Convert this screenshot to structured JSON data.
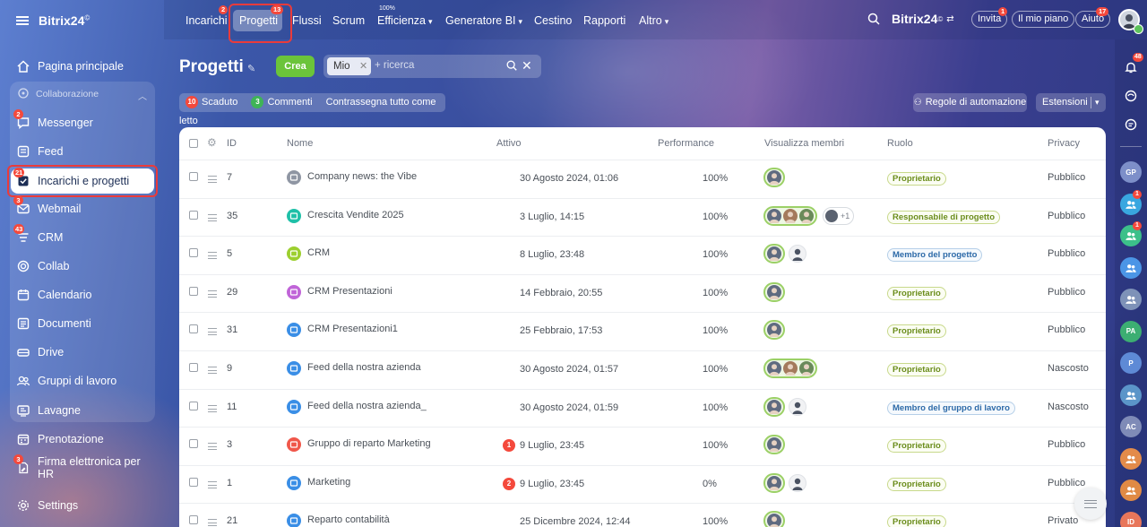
{
  "app": {
    "brand": "Bitrix24",
    "brand_mark": "©"
  },
  "sidebar": {
    "items": [
      {
        "label": "Pagina principale",
        "icon": "home-icon"
      },
      {
        "label": "Messenger",
        "icon": "chat-icon",
        "badge": "2"
      },
      {
        "label": "Feed",
        "icon": "feed-icon"
      },
      {
        "label": "Incarichi e progetti",
        "icon": "tasks-icon",
        "badge": "21"
      },
      {
        "label": "Webmail",
        "icon": "mail-icon",
        "badge": "3"
      },
      {
        "label": "CRM",
        "icon": "crm-icon",
        "badge": "43"
      },
      {
        "label": "Collab",
        "icon": "collab-icon"
      },
      {
        "label": "Calendario",
        "icon": "calendar-icon"
      },
      {
        "label": "Documenti",
        "icon": "documents-icon"
      },
      {
        "label": "Drive",
        "icon": "drive-icon"
      },
      {
        "label": "Gruppi di lavoro",
        "icon": "groups-icon"
      },
      {
        "label": "Lavagne",
        "icon": "boards-icon"
      },
      {
        "label": "Prenotazione",
        "icon": "booking-icon"
      },
      {
        "label": "Firma elettronica per HR",
        "icon": "sign-icon",
        "badge": "3"
      },
      {
        "label": "Settings",
        "icon": "settings-icon"
      }
    ],
    "group_label": "Collaborazione"
  },
  "topnav": {
    "items": [
      {
        "label": "Incarichi",
        "badge": "2"
      },
      {
        "label": "Progetti",
        "badge": "13"
      },
      {
        "label": "Flussi"
      },
      {
        "label": "Scrum"
      },
      {
        "label": "Efficienza",
        "small": "100%"
      },
      {
        "label": "Generatore BI"
      },
      {
        "label": "Cestino"
      },
      {
        "label": "Rapporti"
      },
      {
        "label": "Altro"
      }
    ],
    "invite_label": "Invita",
    "invite_badge": "1",
    "plan_label": "Il mio piano",
    "help_label": "Aiuto",
    "help_badge": "17"
  },
  "page": {
    "title": "Progetti",
    "create_label": "Crea",
    "filter_chip": "Mio",
    "search_placeholder": "+ ricerca",
    "counters": {
      "overdue_count": "10",
      "overdue_label": "Scaduto",
      "comments_count": "3",
      "comments_label": "Commenti",
      "mark_read_label": "Contrassegna tutto come letto"
    },
    "automation_label": "Regole di automazione",
    "extensions_label": "Estensioni"
  },
  "table": {
    "columns": [
      "ID",
      "Nome",
      "Attivo",
      "Performance",
      "Visualizza membri",
      "Ruolo",
      "Privacy"
    ],
    "rows": [
      {
        "id": "7",
        "name": "Company news: the Vibe",
        "icon_color": "#8f96a3",
        "active": "30 Agosto 2024, 01:06",
        "badge": "",
        "performance": "100%",
        "members": 1,
        "plain": 0,
        "more": "",
        "role": "Proprietario",
        "role_type": "owner",
        "privacy": "Pubblico"
      },
      {
        "id": "35",
        "name": "Crescita Vendite 2025",
        "icon_color": "#1fc0a8",
        "active": "3 Luglio, 14:15",
        "badge": "",
        "performance": "100%",
        "members": 3,
        "plain": 0,
        "more": "+1",
        "role": "Responsabile di progetto",
        "role_type": "owner",
        "privacy": "Pubblico"
      },
      {
        "id": "5",
        "name": "CRM",
        "icon_color": "#9ccf2f",
        "active": "8 Luglio, 23:48",
        "badge": "",
        "performance": "100%",
        "members": 1,
        "plain": 1,
        "more": "",
        "role": "Membro del progetto",
        "role_type": "blue",
        "privacy": "Pubblico"
      },
      {
        "id": "29",
        "name": "CRM Presentazioni",
        "icon_color": "#c064d8",
        "active": "14 Febbraio, 20:55",
        "badge": "",
        "performance": "100%",
        "members": 1,
        "plain": 0,
        "more": "",
        "role": "Proprietario",
        "role_type": "owner",
        "privacy": "Pubblico"
      },
      {
        "id": "31",
        "name": "CRM Presentazioni1",
        "icon_color": "#3a8ee6",
        "active": "25 Febbraio, 17:53",
        "badge": "",
        "performance": "100%",
        "members": 1,
        "plain": 0,
        "more": "",
        "role": "Proprietario",
        "role_type": "owner",
        "privacy": "Pubblico"
      },
      {
        "id": "9",
        "name": "Feed della nostra azienda",
        "icon_color": "#3a8ee6",
        "active": "30 Agosto 2024, 01:57",
        "badge": "",
        "performance": "100%",
        "members": 3,
        "plain": 0,
        "more": "",
        "role": "Proprietario",
        "role_type": "owner",
        "privacy": "Nascosto"
      },
      {
        "id": "11",
        "name": "Feed della nostra azienda_",
        "icon_color": "#3a8ee6",
        "active": "30 Agosto 2024, 01:59",
        "badge": "",
        "performance": "100%",
        "members": 1,
        "plain": 1,
        "more": "",
        "role": "Membro del gruppo di lavoro",
        "role_type": "blue",
        "privacy": "Nascosto"
      },
      {
        "id": "3",
        "name": "Gruppo di reparto Marketing",
        "icon_color": "#f0574a",
        "active": "9 Luglio, 23:45",
        "badge": "1",
        "performance": "100%",
        "members": 1,
        "plain": 0,
        "more": "",
        "role": "Proprietario",
        "role_type": "owner",
        "privacy": "Pubblico"
      },
      {
        "id": "1",
        "name": "Marketing",
        "icon_color": "#3a8ee6",
        "active": "9 Luglio, 23:45",
        "badge": "2",
        "performance": "0%",
        "members": 1,
        "plain": 1,
        "more": "",
        "role": "Proprietario",
        "role_type": "owner",
        "privacy": "Pubblico"
      },
      {
        "id": "21",
        "name": "Reparto contabilità",
        "icon_color": "#3a8ee6",
        "active": "25 Dicembre 2024, 12:44",
        "badge": "",
        "performance": "100%",
        "members": 1,
        "plain": 0,
        "more": "",
        "role": "Proprietario",
        "role_type": "owner",
        "privacy": "Privato"
      }
    ]
  },
  "right_rail": {
    "notify_badge": "48",
    "items": [
      {
        "label": "GP",
        "color": "#7d8fc9",
        "badge": ""
      },
      {
        "label": "",
        "color": "#39a7e0",
        "badge": "1"
      },
      {
        "label": "",
        "color": "#3cc08a",
        "badge": "1"
      },
      {
        "label": "",
        "color": "#4b95e6",
        "badge": ""
      },
      {
        "label": "",
        "color": "#7e92b8",
        "badge": ""
      },
      {
        "label": "PA",
        "color": "#3cae72",
        "badge": ""
      },
      {
        "label": "P",
        "color": "#5e8ad6",
        "badge": ""
      },
      {
        "label": "",
        "color": "#5b95c9",
        "badge": ""
      },
      {
        "label": "AC",
        "color": "#7f8bb7",
        "badge": ""
      },
      {
        "label": "",
        "color": "#e38b4a",
        "badge": ""
      },
      {
        "label": "",
        "color": "#e08a45",
        "badge": ""
      },
      {
        "label": "ID",
        "color": "#e8765a",
        "badge": ""
      }
    ]
  }
}
